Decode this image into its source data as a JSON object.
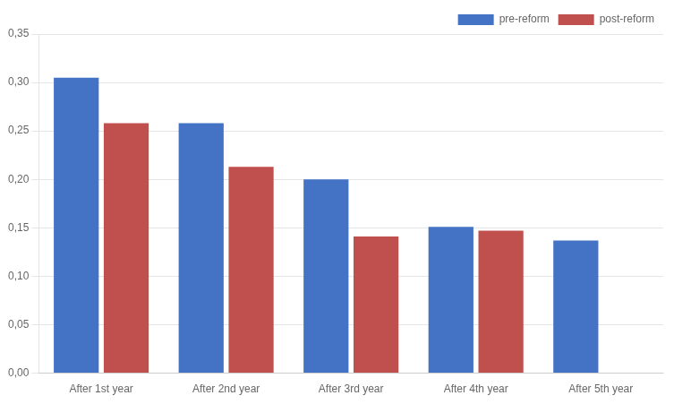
{
  "chart_data": {
    "type": "bar",
    "categories": [
      "After 1st year",
      "After 2nd year",
      "After 3rd year",
      "After 4th year",
      "After 5th year"
    ],
    "series": [
      {
        "name": "pre-reform",
        "color": "#4472C4",
        "values": [
          0.305,
          0.258,
          0.2,
          0.151,
          0.137
        ]
      },
      {
        "name": "post-reform",
        "color": "#C0504D",
        "values": [
          0.258,
          0.213,
          0.141,
          0.147,
          null
        ]
      }
    ],
    "ylim": [
      0,
      0.35
    ],
    "yticks": [
      {
        "value": 0.0,
        "label": "0,00"
      },
      {
        "value": 0.05,
        "label": "0,05"
      },
      {
        "value": 0.1,
        "label": "0,10"
      },
      {
        "value": 0.15,
        "label": "0,15"
      },
      {
        "value": 0.2,
        "label": "0,20"
      },
      {
        "value": 0.25,
        "label": "0,25"
      },
      {
        "value": 0.3,
        "label": "0,30"
      },
      {
        "value": 0.35,
        "label": "0,35"
      }
    ],
    "grid": true,
    "legend": "upper right"
  }
}
